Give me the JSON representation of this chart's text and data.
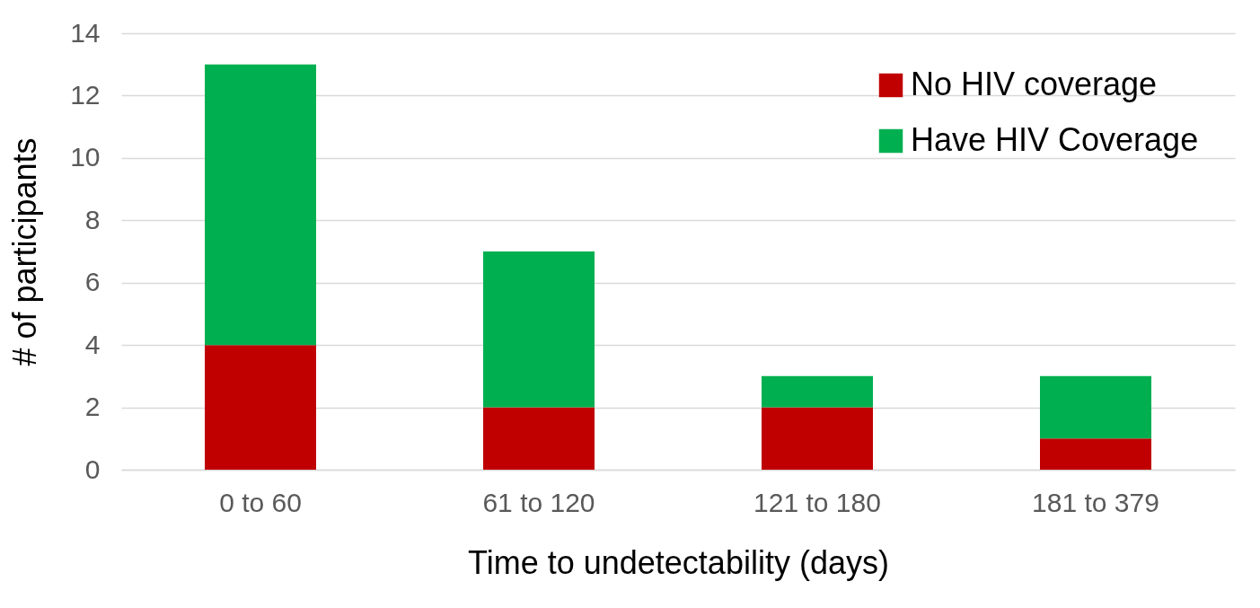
{
  "chart_data": {
    "type": "bar",
    "xlabel": "Time to undetectability (days)",
    "ylabel": "# of participants",
    "categories": [
      "0 to 60",
      "61 to 120",
      "121 to 180",
      "181 to 379"
    ],
    "stacked": true,
    "series": [
      {
        "name": "No HIV coverage",
        "color": "#c00000",
        "values": [
          4,
          2,
          2,
          1
        ]
      },
      {
        "name": "Have HIV Coverage",
        "color": "#00b050",
        "values": [
          9,
          5,
          1,
          2
        ]
      }
    ],
    "ylim": [
      0,
      14
    ],
    "yticks": [
      0,
      2,
      4,
      6,
      8,
      10,
      12,
      14
    ],
    "grid": "y",
    "legend": "top right"
  }
}
